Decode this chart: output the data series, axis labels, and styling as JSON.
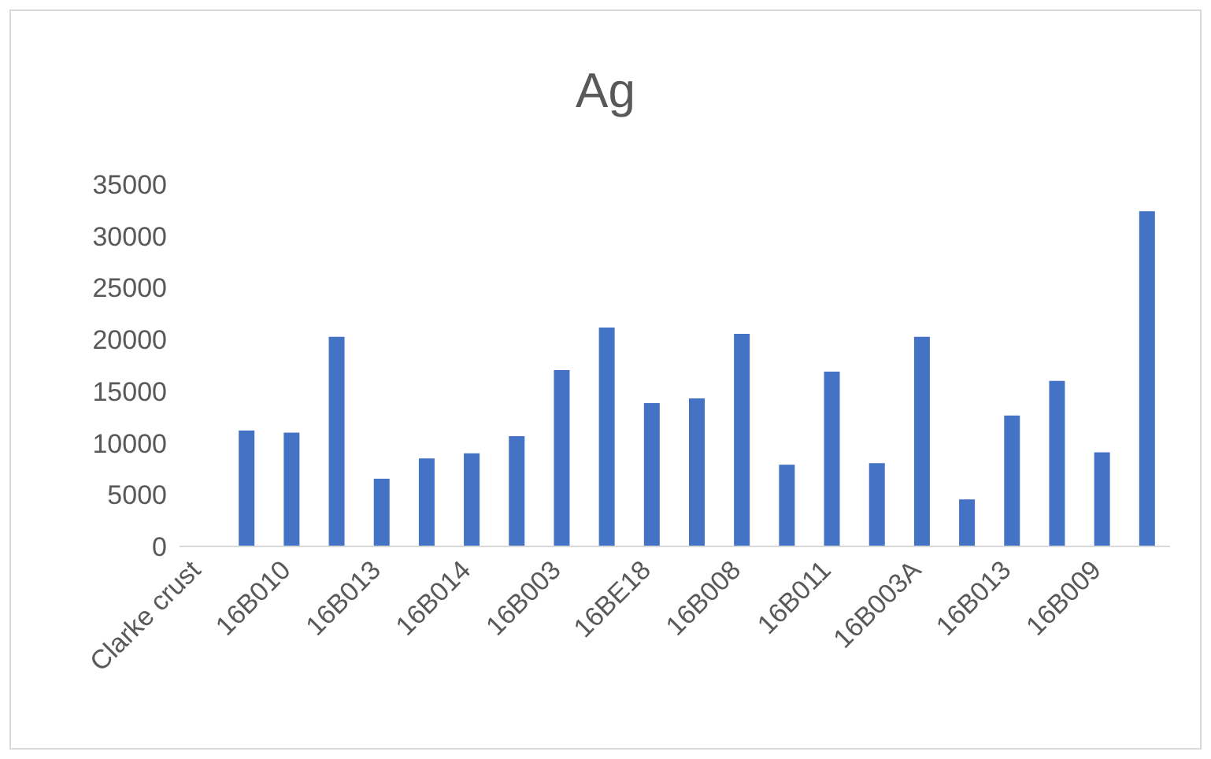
{
  "chart_data": {
    "type": "bar",
    "title": "Ag",
    "categories": [
      "Clarke crust",
      null,
      "16B010",
      null,
      "16B013",
      null,
      "16B014",
      null,
      "16B003",
      null,
      "16BE18",
      null,
      "16B008",
      null,
      "16B011",
      null,
      "16B003A",
      null,
      "16B013",
      null,
      "16B009",
      null
    ],
    "values": [
      0,
      11200,
      11000,
      20250,
      6550,
      8500,
      9000,
      10650,
      17050,
      21150,
      13850,
      14300,
      20550,
      7900,
      16900,
      8050,
      20250,
      4550,
      12650,
      16000,
      9100,
      32400
    ],
    "color": "#4472c4",
    "ylim": [
      0,
      35000
    ],
    "yticks": [
      0,
      5000,
      10000,
      15000,
      20000,
      25000,
      30000,
      35000
    ],
    "grid": false
  }
}
